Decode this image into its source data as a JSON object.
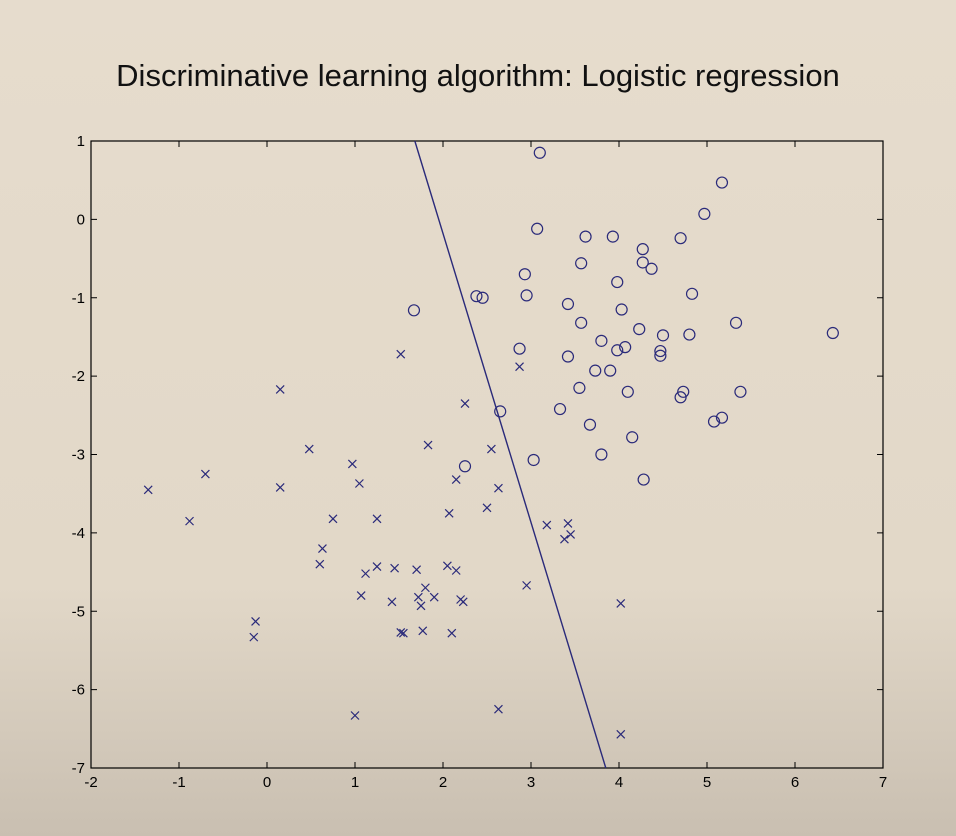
{
  "slide": {
    "title": "Discriminative learning algorithm: Logistic regression"
  },
  "chart_data": {
    "type": "scatter",
    "title": "",
    "xlabel": "",
    "ylabel": "",
    "xlim": [
      -2,
      7
    ],
    "ylim": [
      -7,
      1
    ],
    "x_ticks": [
      -2,
      -1,
      0,
      1,
      2,
      3,
      4,
      5,
      6,
      7
    ],
    "y_ticks": [
      1,
      0,
      -1,
      -2,
      -3,
      -4,
      -5,
      -6,
      -7
    ],
    "grid": false,
    "colors": {
      "marker": "#2a2a7a",
      "line": "#2a2a7a",
      "axis": "#000000"
    },
    "series": [
      {
        "marker": "x",
        "points": [
          [
            -1.35,
            -3.45
          ],
          [
            -0.88,
            -3.85
          ],
          [
            -0.7,
            -3.25
          ],
          [
            -0.13,
            -5.13
          ],
          [
            -0.15,
            -5.33
          ],
          [
            0.15,
            -2.17
          ],
          [
            0.15,
            -3.42
          ],
          [
            0.48,
            -2.93
          ],
          [
            0.6,
            -4.4
          ],
          [
            0.63,
            -4.2
          ],
          [
            0.75,
            -3.82
          ],
          [
            0.97,
            -3.12
          ],
          [
            1.05,
            -3.37
          ],
          [
            1.07,
            -4.8
          ],
          [
            1.12,
            -4.52
          ],
          [
            1.0,
            -6.33
          ],
          [
            1.25,
            -3.82
          ],
          [
            1.25,
            -4.43
          ],
          [
            1.42,
            -4.88
          ],
          [
            1.45,
            -4.45
          ],
          [
            1.52,
            -1.72
          ],
          [
            1.52,
            -5.27
          ],
          [
            1.55,
            -5.28
          ],
          [
            1.7,
            -4.47
          ],
          [
            1.72,
            -4.82
          ],
          [
            1.75,
            -4.93
          ],
          [
            1.77,
            -5.25
          ],
          [
            1.8,
            -4.7
          ],
          [
            1.83,
            -2.88
          ],
          [
            1.9,
            -4.82
          ],
          [
            2.05,
            -4.42
          ],
          [
            2.07,
            -3.75
          ],
          [
            2.1,
            -5.28
          ],
          [
            2.15,
            -3.32
          ],
          [
            2.15,
            -4.48
          ],
          [
            2.2,
            -4.85
          ],
          [
            2.23,
            -4.88
          ],
          [
            2.25,
            -2.35
          ],
          [
            2.5,
            -3.68
          ],
          [
            2.55,
            -2.93
          ],
          [
            2.63,
            -3.43
          ],
          [
            2.63,
            -6.25
          ],
          [
            2.87,
            -1.88
          ],
          [
            2.95,
            -4.67
          ],
          [
            3.18,
            -3.9
          ],
          [
            3.38,
            -4.08
          ],
          [
            3.42,
            -3.88
          ],
          [
            3.45,
            -4.02
          ],
          [
            4.02,
            -4.9
          ],
          [
            4.02,
            -6.57
          ]
        ]
      },
      {
        "marker": "o",
        "points": [
          [
            3.1,
            0.85
          ],
          [
            5.17,
            0.47
          ],
          [
            4.97,
            0.07
          ],
          [
            3.07,
            -0.12
          ],
          [
            3.62,
            -0.22
          ],
          [
            3.93,
            -0.22
          ],
          [
            4.7,
            -0.24
          ],
          [
            4.27,
            -0.38
          ],
          [
            4.27,
            -0.55
          ],
          [
            4.37,
            -0.63
          ],
          [
            3.57,
            -0.56
          ],
          [
            2.93,
            -0.7
          ],
          [
            3.98,
            -0.8
          ],
          [
            2.38,
            -0.98
          ],
          [
            2.45,
            -1.0
          ],
          [
            2.95,
            -0.97
          ],
          [
            4.83,
            -0.95
          ],
          [
            3.42,
            -1.08
          ],
          [
            4.03,
            -1.15
          ],
          [
            1.67,
            -1.16
          ],
          [
            3.57,
            -1.32
          ],
          [
            5.33,
            -1.32
          ],
          [
            4.23,
            -1.4
          ],
          [
            6.43,
            -1.45
          ],
          [
            4.5,
            -1.48
          ],
          [
            4.8,
            -1.47
          ],
          [
            3.8,
            -1.55
          ],
          [
            4.07,
            -1.63
          ],
          [
            3.98,
            -1.67
          ],
          [
            2.87,
            -1.65
          ],
          [
            4.47,
            -1.68
          ],
          [
            4.47,
            -1.74
          ],
          [
            3.42,
            -1.75
          ],
          [
            3.73,
            -1.93
          ],
          [
            3.9,
            -1.93
          ],
          [
            3.55,
            -2.15
          ],
          [
            4.1,
            -2.2
          ],
          [
            4.73,
            -2.2
          ],
          [
            4.7,
            -2.27
          ],
          [
            5.38,
            -2.2
          ],
          [
            3.33,
            -2.42
          ],
          [
            2.65,
            -2.45
          ],
          [
            5.17,
            -2.53
          ],
          [
            5.08,
            -2.58
          ],
          [
            3.67,
            -2.62
          ],
          [
            4.15,
            -2.78
          ],
          [
            3.8,
            -3.0
          ],
          [
            3.03,
            -3.07
          ],
          [
            2.25,
            -3.15
          ],
          [
            4.28,
            -3.32
          ]
        ]
      }
    ],
    "decision_boundary": {
      "x1": 1.68,
      "y1": 1.0,
      "x2": 3.85,
      "y2": -7.0
    }
  }
}
